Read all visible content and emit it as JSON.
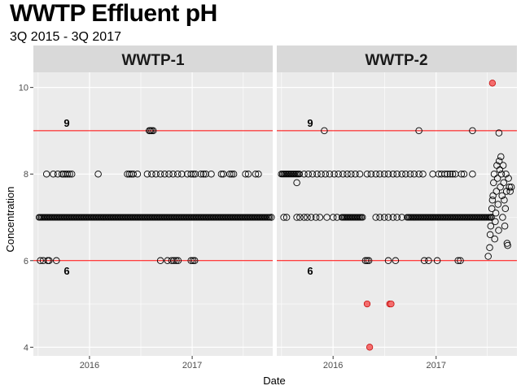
{
  "title": "WWTP Effluent pH",
  "subtitle": "3Q 2015 - 3Q 2017",
  "colors": {
    "panel_bg": "#ebebeb",
    "strip_bg": "#d9d9d9",
    "grid": "#ffffff",
    "ref_line": "#ff0000",
    "outlier_fill": "#f46d6d",
    "point_stroke": "#000000"
  },
  "chart_data": {
    "type": "scatter",
    "title": "WWTP Effluent pH",
    "subtitle": "3Q 2015 - 3Q 2017",
    "xlabel": "Date",
    "ylabel": "Concentration",
    "x_ticks": [
      "2016",
      "2017"
    ],
    "y_ticks": [
      4,
      6,
      8,
      10
    ],
    "xlim": [
      "2015-06-15",
      "2017-10-15"
    ],
    "ylim": [
      3.8,
      10.35
    ],
    "grid": true,
    "legend": "none",
    "reference_lines": [
      {
        "y": 9,
        "label": "9"
      },
      {
        "y": 6,
        "label": "6"
      }
    ],
    "panels": [
      {
        "name": "WWTP-1",
        "continuous_runs": [
          {
            "y": 7,
            "start": "2015-07-05",
            "end": "2017-10-05"
          }
        ],
        "points": [
          {
            "x": "2015-07-10",
            "y": 6
          },
          {
            "x": "2015-07-20",
            "y": 6
          },
          {
            "x": "2015-08-05",
            "y": 6
          },
          {
            "x": "2015-08-10",
            "y": 6
          },
          {
            "x": "2015-09-05",
            "y": 6
          },
          {
            "x": "2015-08-01",
            "y": 8
          },
          {
            "x": "2015-08-25",
            "y": 8
          },
          {
            "x": "2015-09-10",
            "y": 8
          },
          {
            "x": "2015-09-25",
            "y": 8
          },
          {
            "x": "2015-10-01",
            "y": 8
          },
          {
            "x": "2015-10-08",
            "y": 8
          },
          {
            "x": "2015-10-15",
            "y": 8
          },
          {
            "x": "2015-10-22",
            "y": 8
          },
          {
            "x": "2015-10-30",
            "y": 8
          },
          {
            "x": "2016-02-01",
            "y": 8
          },
          {
            "x": "2016-05-15",
            "y": 8
          },
          {
            "x": "2016-05-22",
            "y": 8
          },
          {
            "x": "2016-05-29",
            "y": 8
          },
          {
            "x": "2016-06-05",
            "y": 8
          },
          {
            "x": "2016-06-20",
            "y": 8
          },
          {
            "x": "2016-08-01",
            "y": 9
          },
          {
            "x": "2016-08-05",
            "y": 9
          },
          {
            "x": "2016-08-10",
            "y": 9
          },
          {
            "x": "2016-08-15",
            "y": 9
          },
          {
            "x": "2016-07-25",
            "y": 8
          },
          {
            "x": "2016-08-10",
            "y": 8
          },
          {
            "x": "2016-08-25",
            "y": 8
          },
          {
            "x": "2016-09-10",
            "y": 8
          },
          {
            "x": "2016-09-25",
            "y": 8
          },
          {
            "x": "2016-10-10",
            "y": 8
          },
          {
            "x": "2016-10-25",
            "y": 8
          },
          {
            "x": "2016-11-10",
            "y": 8
          },
          {
            "x": "2016-11-25",
            "y": 8
          },
          {
            "x": "2016-12-15",
            "y": 8
          },
          {
            "x": "2016-12-28",
            "y": 8
          },
          {
            "x": "2017-01-05",
            "y": 8
          },
          {
            "x": "2017-01-12",
            "y": 8
          },
          {
            "x": "2017-02-01",
            "y": 8
          },
          {
            "x": "2017-02-10",
            "y": 8
          },
          {
            "x": "2017-02-18",
            "y": 8
          },
          {
            "x": "2017-03-10",
            "y": 8
          },
          {
            "x": "2017-04-15",
            "y": 8
          },
          {
            "x": "2017-04-22",
            "y": 8
          },
          {
            "x": "2017-05-15",
            "y": 8
          },
          {
            "x": "2017-05-22",
            "y": 8
          },
          {
            "x": "2017-05-29",
            "y": 8
          },
          {
            "x": "2017-07-10",
            "y": 8
          },
          {
            "x": "2017-07-20",
            "y": 8
          },
          {
            "x": "2017-08-15",
            "y": 8
          },
          {
            "x": "2017-08-25",
            "y": 8
          },
          {
            "x": "2016-09-10",
            "y": 6
          },
          {
            "x": "2016-10-05",
            "y": 6
          },
          {
            "x": "2016-10-20",
            "y": 6
          },
          {
            "x": "2016-10-28",
            "y": 6
          },
          {
            "x": "2016-11-05",
            "y": 6
          },
          {
            "x": "2016-11-12",
            "y": 6
          },
          {
            "x": "2016-12-28",
            "y": 6
          },
          {
            "x": "2017-01-04",
            "y": 6
          },
          {
            "x": "2017-01-10",
            "y": 6
          },
          {
            "x": "2017-10-10",
            "y": 7
          }
        ]
      },
      {
        "name": "WWTP-2",
        "continuous_runs": [
          {
            "y": 8,
            "start": "2015-07-01",
            "end": "2015-09-05"
          },
          {
            "y": 7,
            "start": "2016-02-01",
            "end": "2016-04-15"
          },
          {
            "y": 7,
            "start": "2016-09-20",
            "end": "2017-07-20"
          }
        ],
        "points": [
          {
            "x": "2015-08-25",
            "y": 7.8
          },
          {
            "x": "2015-09-20",
            "y": 8
          },
          {
            "x": "2015-10-05",
            "y": 8
          },
          {
            "x": "2015-10-20",
            "y": 8
          },
          {
            "x": "2015-11-05",
            "y": 8
          },
          {
            "x": "2015-11-20",
            "y": 8
          },
          {
            "x": "2015-12-05",
            "y": 8
          },
          {
            "x": "2015-12-20",
            "y": 8
          },
          {
            "x": "2016-01-05",
            "y": 8
          },
          {
            "x": "2016-01-20",
            "y": 8
          },
          {
            "x": "2016-02-05",
            "y": 8
          },
          {
            "x": "2016-02-20",
            "y": 8
          },
          {
            "x": "2016-03-05",
            "y": 8
          },
          {
            "x": "2016-03-20",
            "y": 8
          },
          {
            "x": "2016-04-05",
            "y": 8
          },
          {
            "x": "2016-05-01",
            "y": 8
          },
          {
            "x": "2016-05-15",
            "y": 8
          },
          {
            "x": "2016-06-01",
            "y": 8
          },
          {
            "x": "2016-06-15",
            "y": 8
          },
          {
            "x": "2016-07-01",
            "y": 8
          },
          {
            "x": "2016-07-15",
            "y": 8
          },
          {
            "x": "2016-08-01",
            "y": 8
          },
          {
            "x": "2016-08-15",
            "y": 8
          },
          {
            "x": "2016-09-01",
            "y": 8
          },
          {
            "x": "2016-09-15",
            "y": 8
          },
          {
            "x": "2016-10-01",
            "y": 8
          },
          {
            "x": "2016-10-15",
            "y": 8
          },
          {
            "x": "2016-11-01",
            "y": 8
          },
          {
            "x": "2016-11-15",
            "y": 8
          },
          {
            "x": "2016-12-20",
            "y": 8
          },
          {
            "x": "2017-01-10",
            "y": 8
          },
          {
            "x": "2017-01-20",
            "y": 8
          },
          {
            "x": "2017-02-01",
            "y": 8
          },
          {
            "x": "2017-02-10",
            "y": 8
          },
          {
            "x": "2017-02-20",
            "y": 8
          },
          {
            "x": "2017-03-01",
            "y": 8
          },
          {
            "x": "2017-03-10",
            "y": 8
          },
          {
            "x": "2017-04-01",
            "y": 8
          },
          {
            "x": "2017-04-10",
            "y": 8
          },
          {
            "x": "2017-05-10",
            "y": 8
          },
          {
            "x": "2015-12-01",
            "y": 9
          },
          {
            "x": "2016-11-01",
            "y": 9
          },
          {
            "x": "2017-05-10",
            "y": 9
          },
          {
            "x": "2015-07-10",
            "y": 7
          },
          {
            "x": "2015-07-20",
            "y": 7
          },
          {
            "x": "2015-08-25",
            "y": 7
          },
          {
            "x": "2015-09-05",
            "y": 7
          },
          {
            "x": "2015-09-20",
            "y": 7
          },
          {
            "x": "2015-10-01",
            "y": 7
          },
          {
            "x": "2015-10-15",
            "y": 7
          },
          {
            "x": "2015-11-01",
            "y": 7
          },
          {
            "x": "2015-11-15",
            "y": 7
          },
          {
            "x": "2015-12-10",
            "y": 7
          },
          {
            "x": "2016-01-01",
            "y": 7
          },
          {
            "x": "2016-01-15",
            "y": 7
          },
          {
            "x": "2016-06-01",
            "y": 7
          },
          {
            "x": "2016-06-15",
            "y": 7
          },
          {
            "x": "2016-07-01",
            "y": 7
          },
          {
            "x": "2016-07-15",
            "y": 7
          },
          {
            "x": "2016-08-01",
            "y": 7
          },
          {
            "x": "2016-08-15",
            "y": 7
          },
          {
            "x": "2016-09-01",
            "y": 7
          },
          {
            "x": "2016-04-25",
            "y": 6
          },
          {
            "x": "2016-05-01",
            "y": 6
          },
          {
            "x": "2016-05-07",
            "y": 6
          },
          {
            "x": "2016-07-15",
            "y": 6
          },
          {
            "x": "2016-08-10",
            "y": 6
          },
          {
            "x": "2016-11-20",
            "y": 6
          },
          {
            "x": "2016-12-05",
            "y": 6
          },
          {
            "x": "2017-01-05",
            "y": 6
          },
          {
            "x": "2017-03-20",
            "y": 6
          },
          {
            "x": "2017-03-28",
            "y": 6
          },
          {
            "x": "2017-07-05",
            "y": 6.1
          },
          {
            "x": "2017-07-10",
            "y": 6.3
          },
          {
            "x": "2017-07-12",
            "y": 6.6
          },
          {
            "x": "2017-07-14",
            "y": 6.8
          },
          {
            "x": "2017-07-16",
            "y": 7.0
          },
          {
            "x": "2017-07-18",
            "y": 7.2
          },
          {
            "x": "2017-07-20",
            "y": 7.4
          },
          {
            "x": "2017-07-22",
            "y": 7.5
          },
          {
            "x": "2017-07-24",
            "y": 7.8
          },
          {
            "x": "2017-07-26",
            "y": 8.0
          },
          {
            "x": "2017-07-28",
            "y": 6.5
          },
          {
            "x": "2017-07-30",
            "y": 6.9
          },
          {
            "x": "2017-08-01",
            "y": 7.1
          },
          {
            "x": "2017-08-03",
            "y": 7.6
          },
          {
            "x": "2017-08-05",
            "y": 8.2
          },
          {
            "x": "2017-08-07",
            "y": 7.9
          },
          {
            "x": "2017-08-09",
            "y": 7.3
          },
          {
            "x": "2017-08-11",
            "y": 6.7
          },
          {
            "x": "2017-08-13",
            "y": 8.3
          },
          {
            "x": "2017-08-15",
            "y": 8.1
          },
          {
            "x": "2017-08-17",
            "y": 7.7
          },
          {
            "x": "2017-08-19",
            "y": 8.4
          },
          {
            "x": "2017-08-21",
            "y": 8.0
          },
          {
            "x": "2017-08-23",
            "y": 7.5
          },
          {
            "x": "2017-08-25",
            "y": 7.0
          },
          {
            "x": "2017-08-27",
            "y": 8.2
          },
          {
            "x": "2017-08-29",
            "y": 7.8
          },
          {
            "x": "2017-08-31",
            "y": 7.4
          },
          {
            "x": "2017-09-02",
            "y": 6.8
          },
          {
            "x": "2017-09-04",
            "y": 7.2
          },
          {
            "x": "2017-09-06",
            "y": 8.0
          },
          {
            "x": "2017-09-08",
            "y": 7.6
          },
          {
            "x": "2017-09-10",
            "y": 6.4
          },
          {
            "x": "2017-09-12",
            "y": 6.35
          },
          {
            "x": "2017-09-15",
            "y": 7.9
          },
          {
            "x": "2017-09-18",
            "y": 7.7
          },
          {
            "x": "2017-09-21",
            "y": 7.6
          },
          {
            "x": "2017-09-25",
            "y": 7.7
          },
          {
            "x": "2017-08-12",
            "y": 8.95
          }
        ],
        "outliers": [
          {
            "x": "2017-07-20",
            "y": 10.1
          },
          {
            "x": "2016-05-01",
            "y": 5
          },
          {
            "x": "2016-07-20",
            "y": 5
          },
          {
            "x": "2016-07-25",
            "y": 5
          },
          {
            "x": "2016-05-10",
            "y": 4
          }
        ]
      }
    ]
  }
}
